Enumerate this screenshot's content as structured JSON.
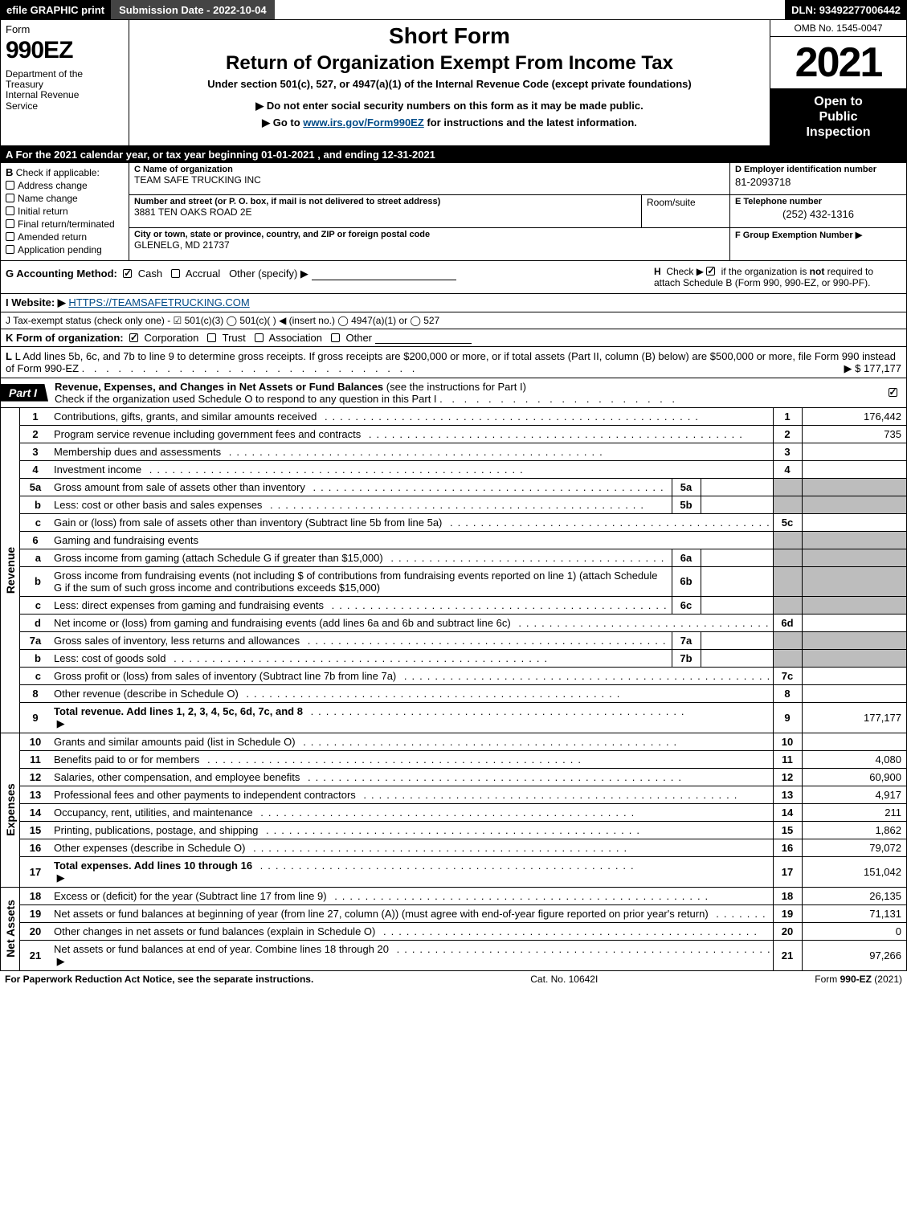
{
  "topbar": {
    "efile": "efile GRAPHIC print",
    "submission": "Submission Date - 2022-10-04",
    "dln": "DLN: 93492277006442"
  },
  "header": {
    "form_label": "Form",
    "form_number": "990EZ",
    "dept": "Department of the Treasury\nInternal Revenue Service",
    "short_form": "Short Form",
    "return_title": "Return of Organization Exempt From Income Tax",
    "under_section": "Under section 501(c), 527, or 4947(a)(1) of the Internal Revenue Code (except private foundations)",
    "bullet1": "▶ Do not enter social security numbers on this form as it may be made public.",
    "bullet2_pre": "▶ Go to ",
    "bullet2_link": "www.irs.gov/Form990EZ",
    "bullet2_post": " for instructions and the latest information.",
    "omb": "OMB No. 1545-0047",
    "year": "2021",
    "inspection": "Open to Public Inspection"
  },
  "lineA": "A  For the 2021 calendar year, or tax year beginning 01-01-2021 , and ending 12-31-2021",
  "sectionB": {
    "title": "B",
    "subtitle": "Check if applicable:",
    "opts": [
      "Address change",
      "Name change",
      "Initial return",
      "Final return/terminated",
      "Amended return",
      "Application pending"
    ]
  },
  "sectionC": {
    "name_lbl": "C Name of organization",
    "name_val": "TEAM SAFE TRUCKING INC",
    "addr_lbl": "Number and street (or P. O. box, if mail is not delivered to street address)",
    "addr_val": "3881 TEN OAKS ROAD 2E",
    "room_lbl": "Room/suite",
    "city_lbl": "City or town, state or province, country, and ZIP or foreign postal code",
    "city_val": "GLENELG, MD  21737"
  },
  "sectionDE": {
    "d_lbl": "D Employer identification number",
    "d_val": "81-2093718",
    "e_lbl": "E Telephone number",
    "e_val": "(252) 432-1316",
    "f_lbl": "F Group Exemption Number  ▶"
  },
  "lineG": {
    "label": "G Accounting Method:",
    "cash": "Cash",
    "accrual": "Accrual",
    "other": "Other (specify) ▶"
  },
  "lineH": {
    "label": "H",
    "text": "Check ▶ ☑ if the organization is not required to attach Schedule B (Form 990, 990-EZ, or 990-PF)."
  },
  "lineI": {
    "label": "I Website: ▶",
    "url": "HTTPS://TEAMSAFETRUCKING.COM"
  },
  "lineJ": "J Tax-exempt status (check only one) - ☑ 501(c)(3)  ◯ 501(c)(  ) ◀ (insert no.)  ◯ 4947(a)(1) or  ◯ 527",
  "lineK": {
    "label": "K Form of organization:",
    "opts": [
      "Corporation",
      "Trust",
      "Association",
      "Other"
    ]
  },
  "lineL": {
    "text": "L Add lines 5b, 6c, and 7b to line 9 to determine gross receipts. If gross receipts are $200,000 or more, or if total assets (Part II, column (B) below) are $500,000 or more, file Form 990 instead of Form 990-EZ",
    "amount": "▶ $ 177,177"
  },
  "part1": {
    "tab": "Part I",
    "title_bold": "Revenue, Expenses, and Changes in Net Assets or Fund Balances",
    "title_rest": " (see the instructions for Part I)",
    "check_text": "Check if the organization used Schedule O to respond to any question in this Part I"
  },
  "sidelabels": {
    "revenue": "Revenue",
    "expenses": "Expenses",
    "netassets": "Net Assets"
  },
  "revenue_lines": [
    {
      "ln": "1",
      "desc": "Contributions, gifts, grants, and similar amounts received",
      "num": "1",
      "amt": "176,442"
    },
    {
      "ln": "2",
      "desc": "Program service revenue including government fees and contracts",
      "num": "2",
      "amt": "735"
    },
    {
      "ln": "3",
      "desc": "Membership dues and assessments",
      "num": "3",
      "amt": ""
    },
    {
      "ln": "4",
      "desc": "Investment income",
      "num": "4",
      "amt": ""
    },
    {
      "ln": "5a",
      "desc": "Gross amount from sale of assets other than inventory",
      "sublbl": "5a",
      "subval": ""
    },
    {
      "ln": "b",
      "desc": "Less: cost or other basis and sales expenses",
      "sublbl": "5b",
      "subval": ""
    },
    {
      "ln": "c",
      "desc": "Gain or (loss) from sale of assets other than inventory (Subtract line 5b from line 5a)",
      "num": "5c",
      "amt": ""
    },
    {
      "ln": "6",
      "desc": "Gaming and fundraising events",
      "shade": true
    },
    {
      "ln": "a",
      "desc": "Gross income from gaming (attach Schedule G if greater than $15,000)",
      "sublbl": "6a",
      "subval": ""
    },
    {
      "ln": "b",
      "desc": "Gross income from fundraising events (not including $                       of contributions from fundraising events reported on line 1) (attach Schedule G if the sum of such gross income and contributions exceeds $15,000)",
      "sublbl": "6b",
      "subval": ""
    },
    {
      "ln": "c",
      "desc": "Less: direct expenses from gaming and fundraising events",
      "sublbl": "6c",
      "subval": ""
    },
    {
      "ln": "d",
      "desc": "Net income or (loss) from gaming and fundraising events (add lines 6a and 6b and subtract line 6c)",
      "num": "6d",
      "amt": ""
    },
    {
      "ln": "7a",
      "desc": "Gross sales of inventory, less returns and allowances",
      "sublbl": "7a",
      "subval": ""
    },
    {
      "ln": "b",
      "desc": "Less: cost of goods sold",
      "sublbl": "7b",
      "subval": ""
    },
    {
      "ln": "c",
      "desc": "Gross profit or (loss) from sales of inventory (Subtract line 7b from line 7a)",
      "num": "7c",
      "amt": ""
    },
    {
      "ln": "8",
      "desc": "Other revenue (describe in Schedule O)",
      "num": "8",
      "amt": ""
    },
    {
      "ln": "9",
      "desc": "Total revenue. Add lines 1, 2, 3, 4, 5c, 6d, 7c, and 8",
      "num": "9",
      "amt": "177,177",
      "bold": true,
      "arrow": true
    }
  ],
  "expense_lines": [
    {
      "ln": "10",
      "desc": "Grants and similar amounts paid (list in Schedule O)",
      "num": "10",
      "amt": ""
    },
    {
      "ln": "11",
      "desc": "Benefits paid to or for members",
      "num": "11",
      "amt": "4,080"
    },
    {
      "ln": "12",
      "desc": "Salaries, other compensation, and employee benefits",
      "num": "12",
      "amt": "60,900"
    },
    {
      "ln": "13",
      "desc": "Professional fees and other payments to independent contractors",
      "num": "13",
      "amt": "4,917"
    },
    {
      "ln": "14",
      "desc": "Occupancy, rent, utilities, and maintenance",
      "num": "14",
      "amt": "211"
    },
    {
      "ln": "15",
      "desc": "Printing, publications, postage, and shipping",
      "num": "15",
      "amt": "1,862"
    },
    {
      "ln": "16",
      "desc": "Other expenses (describe in Schedule O)",
      "num": "16",
      "amt": "79,072"
    },
    {
      "ln": "17",
      "desc": "Total expenses. Add lines 10 through 16",
      "num": "17",
      "amt": "151,042",
      "bold": true,
      "arrow": true
    }
  ],
  "netasset_lines": [
    {
      "ln": "18",
      "desc": "Excess or (deficit) for the year (Subtract line 17 from line 9)",
      "num": "18",
      "amt": "26,135"
    },
    {
      "ln": "19",
      "desc": "Net assets or fund balances at beginning of year (from line 27, column (A)) (must agree with end-of-year figure reported on prior year's return)",
      "num": "19",
      "amt": "71,131"
    },
    {
      "ln": "20",
      "desc": "Other changes in net assets or fund balances (explain in Schedule O)",
      "num": "20",
      "amt": "0"
    },
    {
      "ln": "21",
      "desc": "Net assets or fund balances at end of year. Combine lines 18 through 20",
      "num": "21",
      "amt": "97,266",
      "arrow": true
    }
  ],
  "footer": {
    "left": "For Paperwork Reduction Act Notice, see the separate instructions.",
    "mid": "Cat. No. 10642I",
    "right_pre": "Form ",
    "right_bold": "990-EZ",
    "right_post": " (2021)"
  }
}
